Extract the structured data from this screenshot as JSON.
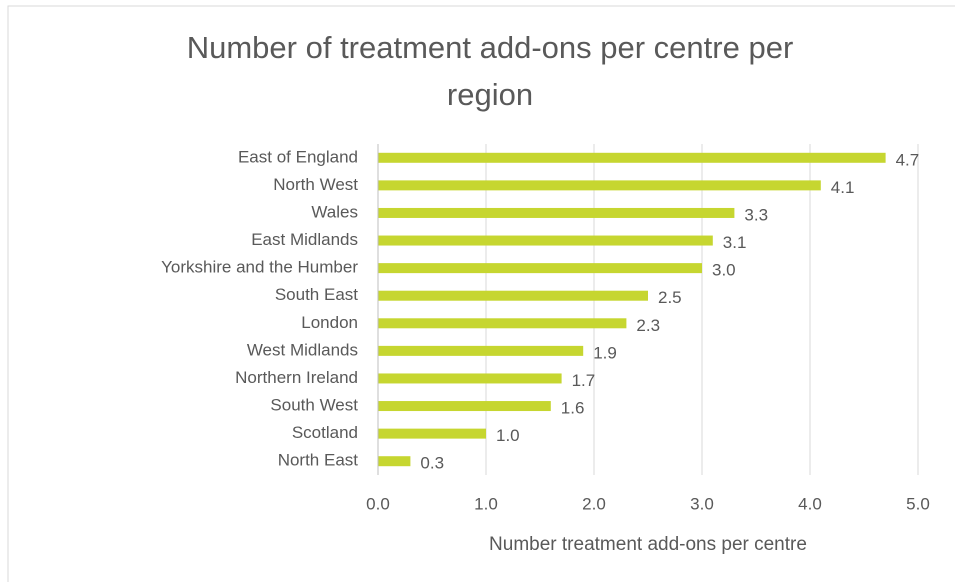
{
  "chart_data": {
    "type": "bar",
    "orientation": "horizontal",
    "title": "Number of treatment add-ons per centre per region",
    "x_label": "Number treatment add-ons per centre",
    "categories": [
      "East of England",
      "North West",
      "Wales",
      "East Midlands",
      "Yorkshire and the Humber",
      "South East",
      "London",
      "West Midlands",
      "Northern Ireland",
      "South West",
      "Scotland",
      "North East"
    ],
    "values": [
      4.7,
      4.1,
      3.3,
      3.1,
      3.0,
      2.5,
      2.3,
      1.9,
      1.7,
      1.6,
      1.0,
      0.3
    ],
    "value_labels": [
      "4.7",
      "4.1",
      "3.3",
      "3.1",
      "3.0",
      "2.5",
      "2.3",
      "1.9",
      "1.7",
      "1.6",
      "1.0",
      "0.3"
    ],
    "color": "#c6d630",
    "xlim": [
      0,
      5
    ],
    "xticks": [
      {
        "value": 0,
        "label": "0.0"
      },
      {
        "value": 1,
        "label": "1.0"
      },
      {
        "value": 2,
        "label": "2.0"
      },
      {
        "value": 3,
        "label": "3.0"
      },
      {
        "value": 4,
        "label": "4.0"
      },
      {
        "value": 5,
        "label": "5.0"
      }
    ],
    "grid": true
  }
}
